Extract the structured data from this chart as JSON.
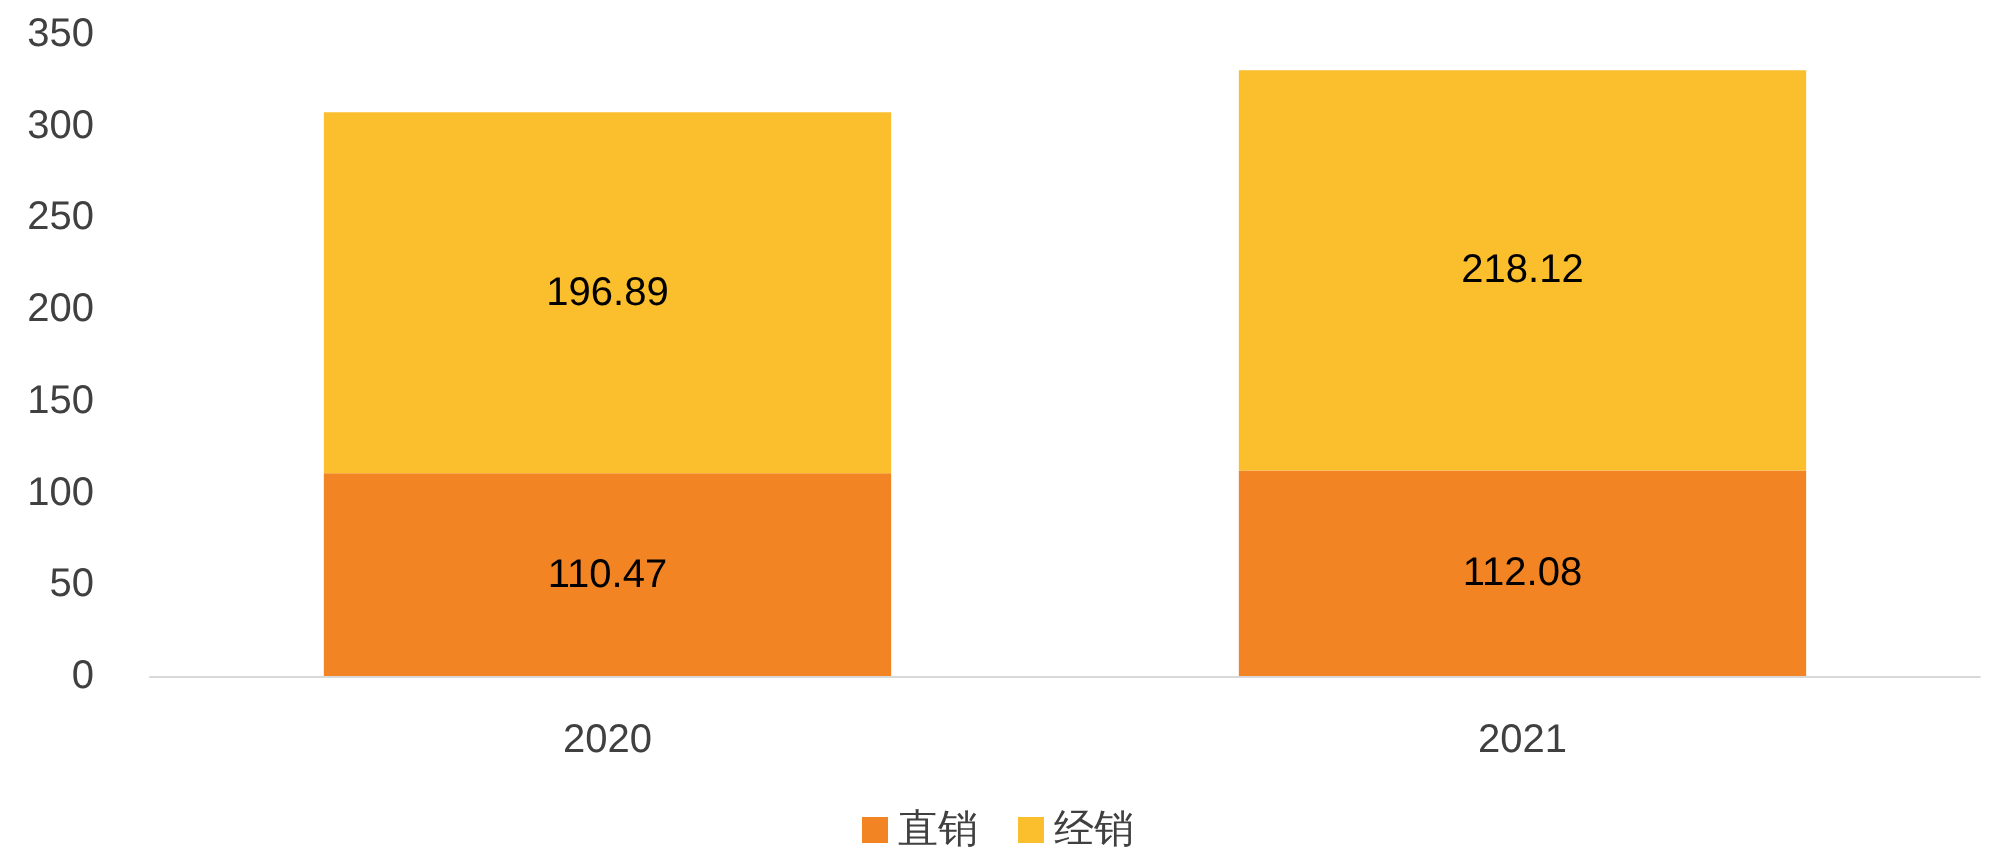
{
  "chart_data": {
    "type": "bar",
    "stacked": true,
    "categories": [
      "2020",
      "2021"
    ],
    "series": [
      {
        "name": "直销",
        "color": "#f28423",
        "values": [
          110.47,
          112.08
        ]
      },
      {
        "name": "经销",
        "color": "#fbbe2c",
        "values": [
          196.89,
          218.12
        ]
      }
    ],
    "ylim": [
      0,
      350
    ],
    "yticks": [
      0,
      50,
      100,
      150,
      200,
      250,
      300,
      350
    ],
    "grid": false,
    "legend": "bottom",
    "data_labels": true
  }
}
